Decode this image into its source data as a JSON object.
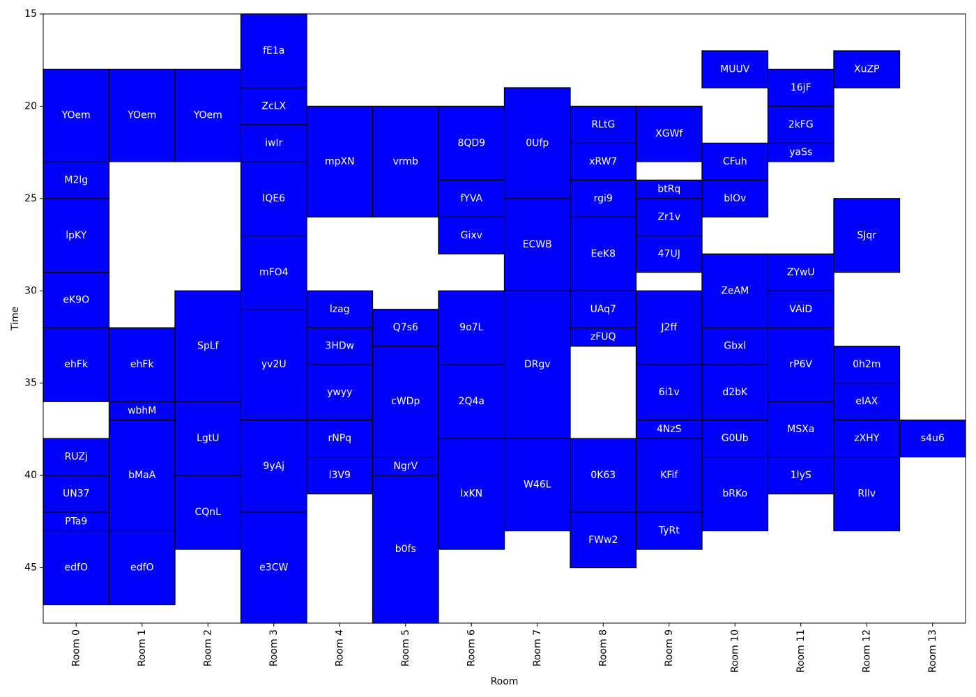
{
  "chart_data": {
    "type": "schedule",
    "xlabel": "Room",
    "ylabel": "Time",
    "ylim": [
      15,
      48
    ],
    "y_inverted": true,
    "rooms": [
      "Room 0",
      "Room 1",
      "Room 2",
      "Room 3",
      "Room 4",
      "Room 5",
      "Room 6",
      "Room 7",
      "Room 8",
      "Room 9",
      "Room 10",
      "Room 11",
      "Room 12",
      "Room 13"
    ],
    "yticks": [
      15,
      20,
      25,
      30,
      35,
      40,
      45
    ],
    "block_color": "#0000ff",
    "edge_color": "#000000",
    "label_color": "#ffffff",
    "blocks": [
      {
        "label": "YOem",
        "room": 0,
        "start": 18,
        "end": 23
      },
      {
        "label": "M2lg",
        "room": 0,
        "start": 23,
        "end": 25
      },
      {
        "label": "lpKY",
        "room": 0,
        "start": 25,
        "end": 29
      },
      {
        "label": "eK9O",
        "room": 0,
        "start": 29,
        "end": 32
      },
      {
        "label": "ehFk",
        "room": 0,
        "start": 32,
        "end": 36
      },
      {
        "label": "RUZj",
        "room": 0,
        "start": 38,
        "end": 40
      },
      {
        "label": "UN37",
        "room": 0,
        "start": 40,
        "end": 42
      },
      {
        "label": "PTa9",
        "room": 0,
        "start": 42,
        "end": 43
      },
      {
        "label": "edfO",
        "room": 0,
        "start": 43,
        "end": 47
      },
      {
        "label": "YOem",
        "room": 1,
        "start": 18,
        "end": 23
      },
      {
        "label": "ehFk",
        "room": 1,
        "start": 32,
        "end": 36
      },
      {
        "label": "wbhM",
        "room": 1,
        "start": 36,
        "end": 37
      },
      {
        "label": "bMaA",
        "room": 1,
        "start": 37,
        "end": 43
      },
      {
        "label": "edfO",
        "room": 1,
        "start": 43,
        "end": 47
      },
      {
        "label": "YOem",
        "room": 2,
        "start": 18,
        "end": 23
      },
      {
        "label": "SpLf",
        "room": 2,
        "start": 30,
        "end": 36
      },
      {
        "label": "LgtU",
        "room": 2,
        "start": 36,
        "end": 40
      },
      {
        "label": "CQnL",
        "room": 2,
        "start": 40,
        "end": 44
      },
      {
        "label": "fE1a",
        "room": 3,
        "start": 15,
        "end": 19
      },
      {
        "label": "ZcLX",
        "room": 3,
        "start": 19,
        "end": 21
      },
      {
        "label": "iwIr",
        "room": 3,
        "start": 21,
        "end": 23
      },
      {
        "label": "lQE6",
        "room": 3,
        "start": 23,
        "end": 27
      },
      {
        "label": "mFO4",
        "room": 3,
        "start": 27,
        "end": 31
      },
      {
        "label": "yv2U",
        "room": 3,
        "start": 31,
        "end": 37
      },
      {
        "label": "9yAj",
        "room": 3,
        "start": 37,
        "end": 42
      },
      {
        "label": "e3CW",
        "room": 3,
        "start": 42,
        "end": 48
      },
      {
        "label": "mpXN",
        "room": 4,
        "start": 20,
        "end": 26
      },
      {
        "label": "lzag",
        "room": 4,
        "start": 30,
        "end": 32
      },
      {
        "label": "3HDw",
        "room": 4,
        "start": 32,
        "end": 34
      },
      {
        "label": "ywyy",
        "room": 4,
        "start": 34,
        "end": 37
      },
      {
        "label": "rNPq",
        "room": 4,
        "start": 37,
        "end": 39
      },
      {
        "label": "l3V9",
        "room": 4,
        "start": 39,
        "end": 41
      },
      {
        "label": "vrmb",
        "room": 5,
        "start": 20,
        "end": 26
      },
      {
        "label": "Q7s6",
        "room": 5,
        "start": 31,
        "end": 33
      },
      {
        "label": "cWDp",
        "room": 5,
        "start": 33,
        "end": 39
      },
      {
        "label": "NgrV",
        "room": 5,
        "start": 39,
        "end": 40
      },
      {
        "label": "b0fs",
        "room": 5,
        "start": 40,
        "end": 48
      },
      {
        "label": "8QD9",
        "room": 6,
        "start": 20,
        "end": 24
      },
      {
        "label": "fYVA",
        "room": 6,
        "start": 24,
        "end": 26
      },
      {
        "label": "Gixv",
        "room": 6,
        "start": 26,
        "end": 28
      },
      {
        "label": "9o7L",
        "room": 6,
        "start": 30,
        "end": 34
      },
      {
        "label": "2Q4a",
        "room": 6,
        "start": 34,
        "end": 38
      },
      {
        "label": "lxKN",
        "room": 6,
        "start": 38,
        "end": 44
      },
      {
        "label": "0Ufp",
        "room": 7,
        "start": 19,
        "end": 25
      },
      {
        "label": "ECWB",
        "room": 7,
        "start": 25,
        "end": 30
      },
      {
        "label": "DRgv",
        "room": 7,
        "start": 30,
        "end": 38
      },
      {
        "label": "W46L",
        "room": 7,
        "start": 38,
        "end": 43
      },
      {
        "label": "RLtG",
        "room": 8,
        "start": 20,
        "end": 22
      },
      {
        "label": "xRW7",
        "room": 8,
        "start": 22,
        "end": 24
      },
      {
        "label": "rgi9",
        "room": 8,
        "start": 24,
        "end": 26
      },
      {
        "label": "EeK8",
        "room": 8,
        "start": 26,
        "end": 30
      },
      {
        "label": "UAq7",
        "room": 8,
        "start": 30,
        "end": 32
      },
      {
        "label": "zFUQ",
        "room": 8,
        "start": 32,
        "end": 33
      },
      {
        "label": "0K63",
        "room": 8,
        "start": 38,
        "end": 42
      },
      {
        "label": "FWw2",
        "room": 8,
        "start": 42,
        "end": 45
      },
      {
        "label": "XGWf",
        "room": 9,
        "start": 20,
        "end": 23
      },
      {
        "label": "btRq",
        "room": 9,
        "start": 24,
        "end": 25
      },
      {
        "label": "Zr1v",
        "room": 9,
        "start": 25,
        "end": 27
      },
      {
        "label": "47UJ",
        "room": 9,
        "start": 27,
        "end": 29
      },
      {
        "label": "J2ff",
        "room": 9,
        "start": 30,
        "end": 34
      },
      {
        "label": "6i1v",
        "room": 9,
        "start": 34,
        "end": 37
      },
      {
        "label": "4NzS",
        "room": 9,
        "start": 37,
        "end": 38
      },
      {
        "label": "KFif",
        "room": 9,
        "start": 38,
        "end": 42
      },
      {
        "label": "TyRt",
        "room": 9,
        "start": 42,
        "end": 44
      },
      {
        "label": "MUUV",
        "room": 10,
        "start": 17,
        "end": 19
      },
      {
        "label": "CFuh",
        "room": 10,
        "start": 22,
        "end": 24
      },
      {
        "label": "blOv",
        "room": 10,
        "start": 24,
        "end": 26
      },
      {
        "label": "ZeAM",
        "room": 10,
        "start": 28,
        "end": 32
      },
      {
        "label": "Gbxl",
        "room": 10,
        "start": 32,
        "end": 34
      },
      {
        "label": "d2bK",
        "room": 10,
        "start": 34,
        "end": 37
      },
      {
        "label": "G0Ub",
        "room": 10,
        "start": 37,
        "end": 39
      },
      {
        "label": "bRKo",
        "room": 10,
        "start": 39,
        "end": 43
      },
      {
        "label": "16jF",
        "room": 11,
        "start": 18,
        "end": 20
      },
      {
        "label": "2kFG",
        "room": 11,
        "start": 20,
        "end": 22
      },
      {
        "label": "yaSs",
        "room": 11,
        "start": 22,
        "end": 23
      },
      {
        "label": "ZYwU",
        "room": 11,
        "start": 28,
        "end": 30
      },
      {
        "label": "VAiD",
        "room": 11,
        "start": 30,
        "end": 32
      },
      {
        "label": "rP6V",
        "room": 11,
        "start": 32,
        "end": 36
      },
      {
        "label": "MSXa",
        "room": 11,
        "start": 36,
        "end": 39
      },
      {
        "label": "1lyS",
        "room": 11,
        "start": 39,
        "end": 41
      },
      {
        "label": "XuZP",
        "room": 12,
        "start": 17,
        "end": 19
      },
      {
        "label": "SJqr",
        "room": 12,
        "start": 25,
        "end": 29
      },
      {
        "label": "0h2m",
        "room": 12,
        "start": 33,
        "end": 35
      },
      {
        "label": "eIAX",
        "room": 12,
        "start": 35,
        "end": 37
      },
      {
        "label": "zXHY",
        "room": 12,
        "start": 37,
        "end": 39
      },
      {
        "label": "Rllv",
        "room": 12,
        "start": 39,
        "end": 43
      },
      {
        "label": "s4u6",
        "room": 13,
        "start": 37,
        "end": 39
      }
    ]
  }
}
